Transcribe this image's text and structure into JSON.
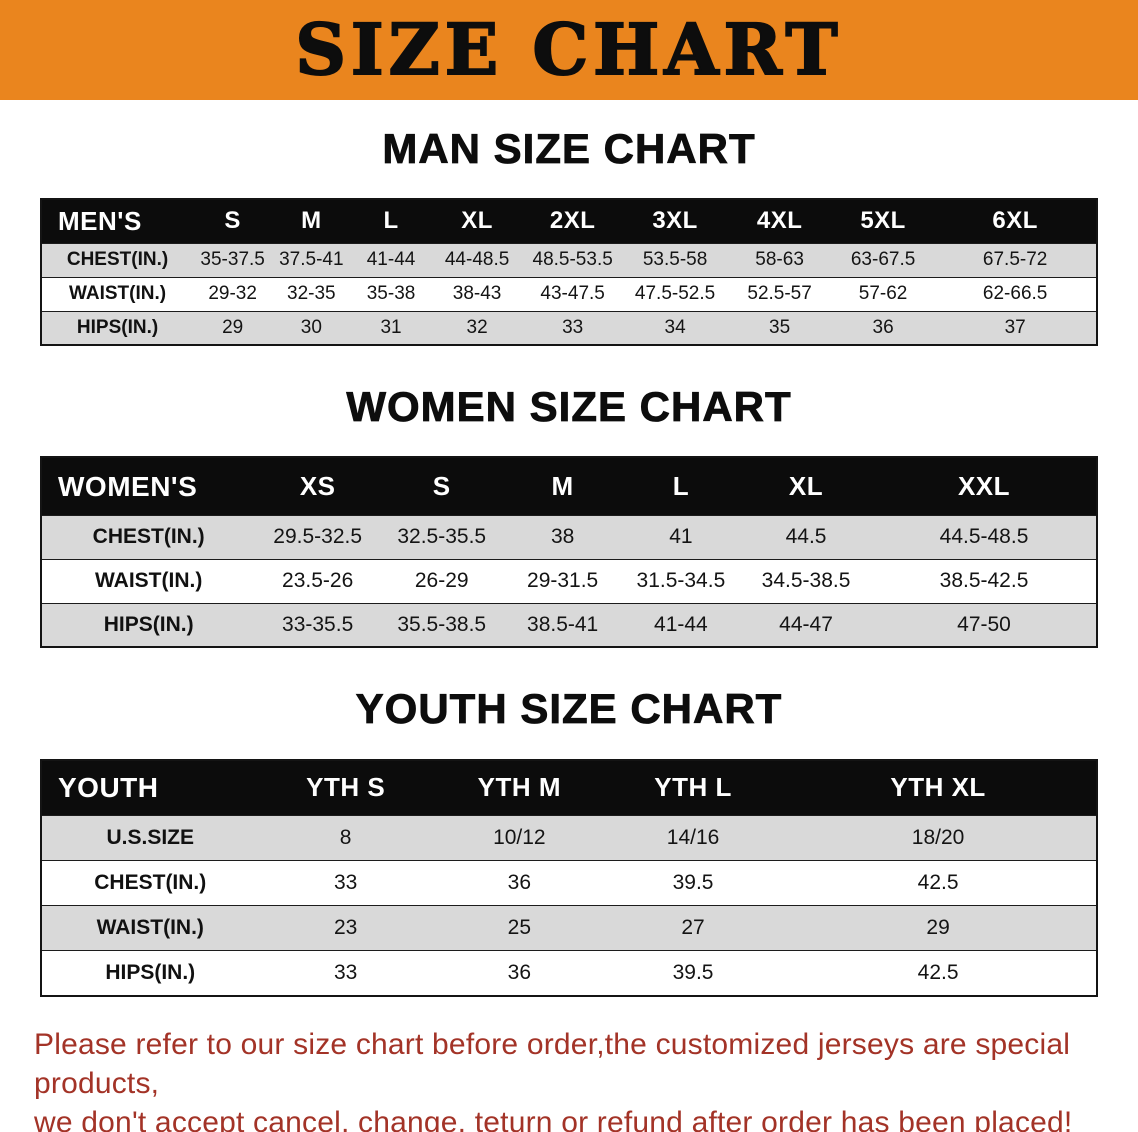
{
  "banner": {
    "title": "SIZE CHART"
  },
  "sections": {
    "men": {
      "heading": "MAN SIZE CHART",
      "table": {
        "header": [
          "MEN'S",
          "S",
          "M",
          "L",
          "XL",
          "2XL",
          "3XL",
          "4XL",
          "5XL",
          "6XL"
        ],
        "rows": [
          {
            "label": "CHEST(IN.)",
            "values": [
              "35-37.5",
              "37.5-41",
              "41-44",
              "44-48.5",
              "48.5-53.5",
              "53.5-58",
              "58-63",
              "63-67.5",
              "67.5-72"
            ]
          },
          {
            "label": "WAIST(IN.)",
            "values": [
              "29-32",
              "32-35",
              "35-38",
              "38-43",
              "43-47.5",
              "47.5-52.5",
              "52.5-57",
              "57-62",
              "62-66.5"
            ]
          },
          {
            "label": "HIPS(IN.)",
            "values": [
              "29",
              "30",
              "31",
              "32",
              "33",
              "34",
              "35",
              "36",
              "37"
            ]
          }
        ]
      }
    },
    "women": {
      "heading": "WOMEN SIZE CHART",
      "table": {
        "header": [
          "WOMEN'S",
          "XS",
          "S",
          "M",
          "L",
          "XL",
          "XXL"
        ],
        "rows": [
          {
            "label": "CHEST(IN.)",
            "values": [
              "29.5-32.5",
              "32.5-35.5",
              "38",
              "41",
              "44.5",
              "44.5-48.5"
            ]
          },
          {
            "label": "WAIST(IN.)",
            "values": [
              "23.5-26",
              "26-29",
              "29-31.5",
              "31.5-34.5",
              "34.5-38.5",
              "38.5-42.5"
            ]
          },
          {
            "label": "HIPS(IN.)",
            "values": [
              "33-35.5",
              "35.5-38.5",
              "38.5-41",
              "41-44",
              "44-47",
              "47-50"
            ]
          }
        ]
      }
    },
    "youth": {
      "heading": "YOUTH SIZE CHART",
      "table": {
        "header": [
          "YOUTH",
          "YTH S",
          "YTH M",
          "YTH L",
          "YTH XL"
        ],
        "rows": [
          {
            "label": "U.S.SIZE",
            "values": [
              "8",
              "10/12",
              "14/16",
              "18/20"
            ]
          },
          {
            "label": "CHEST(IN.)",
            "values": [
              "33",
              "36",
              "39.5",
              "42.5"
            ]
          },
          {
            "label": "WAIST(IN.)",
            "values": [
              "23",
              "25",
              "27",
              "29"
            ]
          },
          {
            "label": "HIPS(IN.)",
            "values": [
              "33",
              "36",
              "39.5",
              "42.5"
            ]
          }
        ]
      }
    }
  },
  "footer": {
    "line1": "Please refer to our size chart before order,the customized jerseys are special products,",
    "line2": "we don't accept cancel, change, teturn or refund after order has been placed!"
  },
  "colors": {
    "banner_orange": "#EA851E",
    "header_black": "#0C0C0C",
    "stripe_gray": "#D9D9D9",
    "note_red": "#A33327"
  }
}
